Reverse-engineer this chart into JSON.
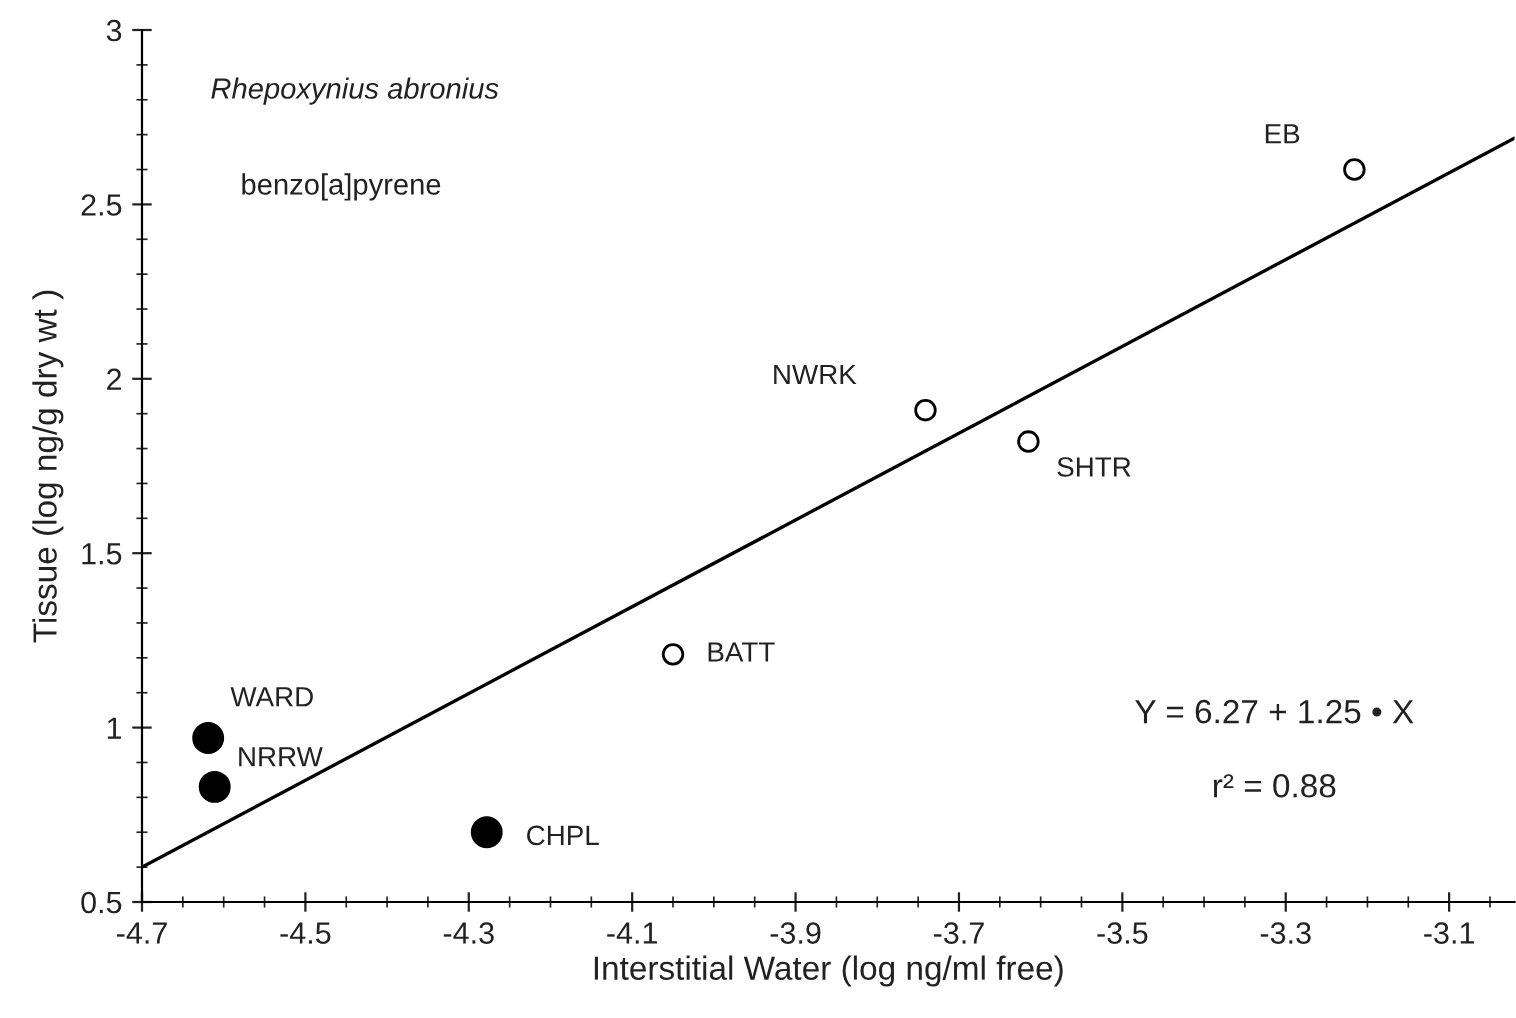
{
  "chart_data": {
    "type": "scatter",
    "xlabel": "Interstitial Water (log ng/ml free)",
    "ylabel": "Tissue (log ng/g dry wt )",
    "xlim": [
      -4.7,
      -3.02
    ],
    "ylim": [
      0.5,
      3
    ],
    "xticks": [
      -4.7,
      -4.5,
      -4.3,
      -4.1,
      -3.9,
      -3.7,
      -3.5,
      -3.3,
      -3.1
    ],
    "yticks": [
      0.5,
      1,
      1.5,
      2,
      2.5,
      3
    ],
    "grid": false,
    "legend": false,
    "marker": "circle",
    "series": [
      {
        "color": "#000000",
        "x": [
          -3.216,
          -3.741,
          -3.615,
          -4.05
        ],
        "values": [
          2.6,
          1.91,
          1.82,
          1.21
        ]
      },
      {
        "color": "#000000",
        "x": [
          -4.619,
          -4.611,
          -4.278
        ],
        "values": [
          0.97,
          0.83,
          0.7
        ]
      },
      {
        "type": "line",
        "marker": "none",
        "color": "#000000",
        "x": [
          -4.7,
          -3.02
        ],
        "values": [
          0.6,
          2.69
        ]
      }
    ],
    "annotations": [
      {
        "text": "EB",
        "x": -3.216,
        "y": 2.6
      },
      {
        "text": "NWRK",
        "x": -3.741,
        "y": 1.91
      },
      {
        "text": "SHTR",
        "x": -3.615,
        "y": 1.82
      },
      {
        "text": "BATT",
        "x": -4.05,
        "y": 1.21
      },
      {
        "text": "WARD",
        "x": -4.619,
        "y": 0.97
      },
      {
        "text": "NRRW",
        "x": -4.611,
        "y": 0.83
      },
      {
        "text": "CHPL",
        "x": -4.278,
        "y": 0.7
      },
      "Rhepoxynius abronius",
      "benzo[a]pyrene",
      "Y = 6.27 + 1.25 • X",
      "r² = 0.88"
    ]
  }
}
